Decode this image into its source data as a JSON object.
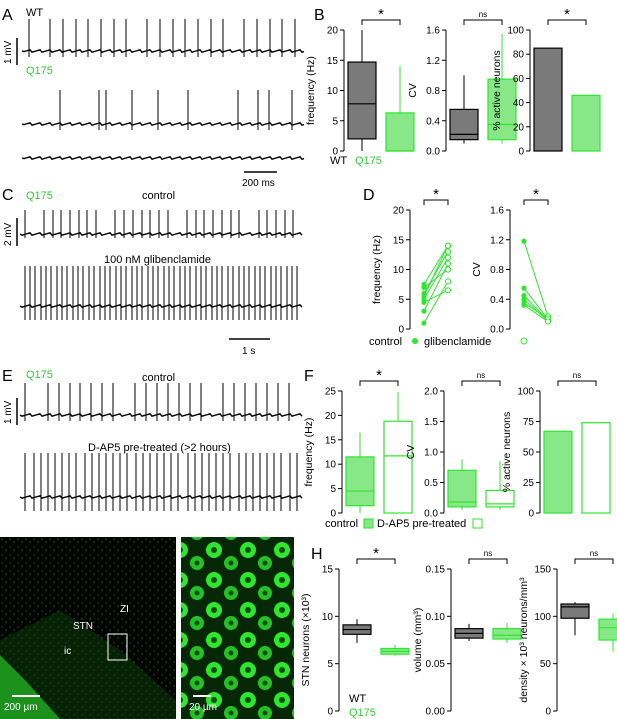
{
  "colors": {
    "wt_fill": "#7a7a7a",
    "q175_fill": "#88e888",
    "green_line": "#2ee62e",
    "black": "#000000",
    "green_text": "#33cc33"
  },
  "panels": {
    "A": {
      "letter": "A",
      "wt_label": "WT",
      "q175_label": "Q175",
      "scale_y": "1 mV",
      "scale_x": "200 ms"
    },
    "B": {
      "letter": "B",
      "legend_wt": "WT",
      "legend_q175": "Q175"
    },
    "C": {
      "letter": "C",
      "genotype": "Q175",
      "cond1": "control",
      "cond2": "100 nM glibenclamide",
      "scale_y": "2 mV",
      "scale_x": "1 s"
    },
    "D": {
      "letter": "D",
      "legend_control": "control",
      "legend_glib": "glibenclamide"
    },
    "E": {
      "letter": "E",
      "genotype": "Q175",
      "cond1": "control",
      "cond2": "D-AP5 pre-treated (>2 hours)",
      "scale_y": "1 mV"
    },
    "F": {
      "letter": "F",
      "legend_control": "control",
      "legend_dap5": "D-AP5 pre-treated"
    },
    "G": {
      "letter": "G",
      "stn": "STN",
      "zi": "ZI",
      "ic": "ic",
      "scale1": "200 µm",
      "scale2": "20 µm"
    },
    "H": {
      "letter": "H",
      "legend_wt": "WT",
      "legend_q175": "Q175"
    }
  },
  "chart_data": [
    {
      "id": "B1",
      "type": "box",
      "ylabel": "frequency (Hz)",
      "ylim": [
        0,
        20
      ],
      "ticks": [
        0,
        5,
        10,
        15,
        20
      ],
      "tick_labels": [
        "0",
        "5",
        "10",
        "15",
        "20"
      ],
      "significance": "*",
      "series": [
        {
          "name": "WT",
          "min": 0,
          "q1": 2,
          "median": 7.8,
          "q3": 14.7,
          "max": 20
        },
        {
          "name": "Q175",
          "min": 0,
          "q1": 0,
          "median": 0,
          "q3": 6.3,
          "max": 14
        }
      ]
    },
    {
      "id": "B2",
      "type": "box",
      "ylabel": "CV",
      "ylim": [
        0,
        1.6
      ],
      "ticks": [
        0,
        0.4,
        0.8,
        1.2,
        1.6
      ],
      "tick_labels": [
        "0.0",
        "0.4",
        "0.8",
        "1.2",
        "1.6"
      ],
      "significance": "ns",
      "series": [
        {
          "name": "WT",
          "min": 0.1,
          "q1": 0.15,
          "median": 0.22,
          "q3": 0.55,
          "max": 1.0
        },
        {
          "name": "Q175",
          "min": 0.1,
          "q1": 0.15,
          "median": 0.35,
          "q3": 0.95,
          "max": 1.55
        }
      ]
    },
    {
      "id": "B3",
      "type": "bar",
      "ylabel": "% active neurons",
      "ylim": [
        0,
        100
      ],
      "ticks": [
        0,
        20,
        40,
        60,
        80,
        100
      ],
      "tick_labels": [
        "0",
        "20",
        "40",
        "60",
        "80",
        "100"
      ],
      "significance": "*",
      "categories": [
        "WT",
        "Q175"
      ],
      "values": [
        85,
        46
      ]
    },
    {
      "id": "D1",
      "type": "paired",
      "ylabel": "frequency (Hz)",
      "ylim": [
        0,
        20
      ],
      "ticks": [
        0,
        5,
        10,
        15,
        20
      ],
      "tick_labels": [
        "0",
        "5",
        "10",
        "15",
        "20"
      ],
      "significance": "*",
      "pairs": [
        [
          1,
          8
        ],
        [
          3,
          11
        ],
        [
          4.5,
          6.5
        ],
        [
          5,
          12
        ],
        [
          5.5,
          14
        ],
        [
          6,
          13
        ],
        [
          7,
          10
        ],
        [
          7.5,
          14
        ]
      ]
    },
    {
      "id": "D2",
      "type": "paired",
      "ylabel": "CV",
      "ylim": [
        0,
        1.6
      ],
      "ticks": [
        0,
        0.4,
        0.8,
        1.2,
        1.6
      ],
      "tick_labels": [
        "0.0",
        "0.4",
        "0.8",
        "1.2",
        "1.6"
      ],
      "significance": "*",
      "pairs": [
        [
          1.18,
          0.17
        ],
        [
          0.55,
          0.13
        ],
        [
          0.45,
          0.12
        ],
        [
          0.4,
          0.11
        ],
        [
          0.35,
          0.14
        ],
        [
          0.32,
          0.1
        ]
      ]
    },
    {
      "id": "F1",
      "type": "box",
      "ylabel": "frequency (Hz)",
      "ylim": [
        0,
        25
      ],
      "ticks": [
        0,
        5,
        10,
        15,
        20,
        25
      ],
      "tick_labels": [
        "0",
        "5",
        "10",
        "15",
        "20",
        "25"
      ],
      "significance": "*",
      "series": [
        {
          "name": "control",
          "min": 0,
          "q1": 1.5,
          "median": 4.5,
          "q3": 11.5,
          "max": 16.5
        },
        {
          "name": "D-AP5 pre-treated",
          "min": 0,
          "q1": 0,
          "median": 11.7,
          "q3": 18.8,
          "max": 24.8
        }
      ]
    },
    {
      "id": "F2",
      "type": "box",
      "ylabel": "CV",
      "ylim": [
        0,
        2.0
      ],
      "ticks": [
        0,
        0.5,
        1.0,
        1.5,
        2.0
      ],
      "tick_labels": [
        "0.0",
        "0.5",
        "1.0",
        "1.5",
        "2.0"
      ],
      "significance": "ns",
      "series": [
        {
          "name": "control",
          "min": 0.05,
          "q1": 0.1,
          "median": 0.18,
          "q3": 0.7,
          "max": 0.88
        },
        {
          "name": "D-AP5 pre-treated",
          "min": 0.05,
          "q1": 0.1,
          "median": 0.15,
          "q3": 0.37,
          "max": 0.85
        }
      ]
    },
    {
      "id": "F3",
      "type": "bar",
      "ylabel": "% active neurons",
      "ylim": [
        0,
        100
      ],
      "ticks": [
        0,
        25,
        50,
        75,
        100
      ],
      "tick_labels": [
        "0",
        "25",
        "50",
        "75",
        "100"
      ],
      "significance": "ns",
      "categories": [
        "control",
        "D-AP5 pre-treated"
      ],
      "values": [
        67,
        74
      ]
    },
    {
      "id": "H1",
      "type": "box",
      "ylabel": "STN neurons (×10³)",
      "ylim": [
        0,
        15
      ],
      "ticks": [
        0,
        5,
        10,
        15
      ],
      "tick_labels": [
        "0",
        "5",
        "10",
        "15"
      ],
      "significance": "*",
      "series": [
        {
          "name": "WT",
          "min": 7.2,
          "q1": 8.1,
          "median": 8.6,
          "q3": 9.1,
          "max": 9.7
        },
        {
          "name": "Q175",
          "min": 5.8,
          "q1": 6.0,
          "median": 6.3,
          "q3": 6.6,
          "max": 7.0
        }
      ]
    },
    {
      "id": "H2",
      "type": "box",
      "ylabel": "volume (mm³)",
      "ylim": [
        0,
        0.15
      ],
      "ticks": [
        0,
        0.05,
        0.1,
        0.15
      ],
      "tick_labels": [
        "0.00",
        "0.05",
        "0.10",
        "0.15"
      ],
      "significance": "ns",
      "series": [
        {
          "name": "WT",
          "min": 0.074,
          "q1": 0.077,
          "median": 0.082,
          "q3": 0.087,
          "max": 0.092
        },
        {
          "name": "Q175",
          "min": 0.072,
          "q1": 0.076,
          "median": 0.08,
          "q3": 0.087,
          "max": 0.093
        }
      ]
    },
    {
      "id": "H3",
      "type": "box",
      "ylabel": "density × 10³ neurons/mm³",
      "ylim": [
        0,
        150
      ],
      "ticks": [
        0,
        50,
        100,
        150
      ],
      "tick_labels": [
        "0",
        "50",
        "100",
        "150"
      ],
      "significance": "ns",
      "series": [
        {
          "name": "WT",
          "min": 80,
          "q1": 98,
          "median": 110,
          "q3": 113,
          "max": 115
        },
        {
          "name": "Q175",
          "min": 63,
          "q1": 75,
          "median": 88,
          "q3": 97,
          "max": 103
        }
      ]
    }
  ]
}
